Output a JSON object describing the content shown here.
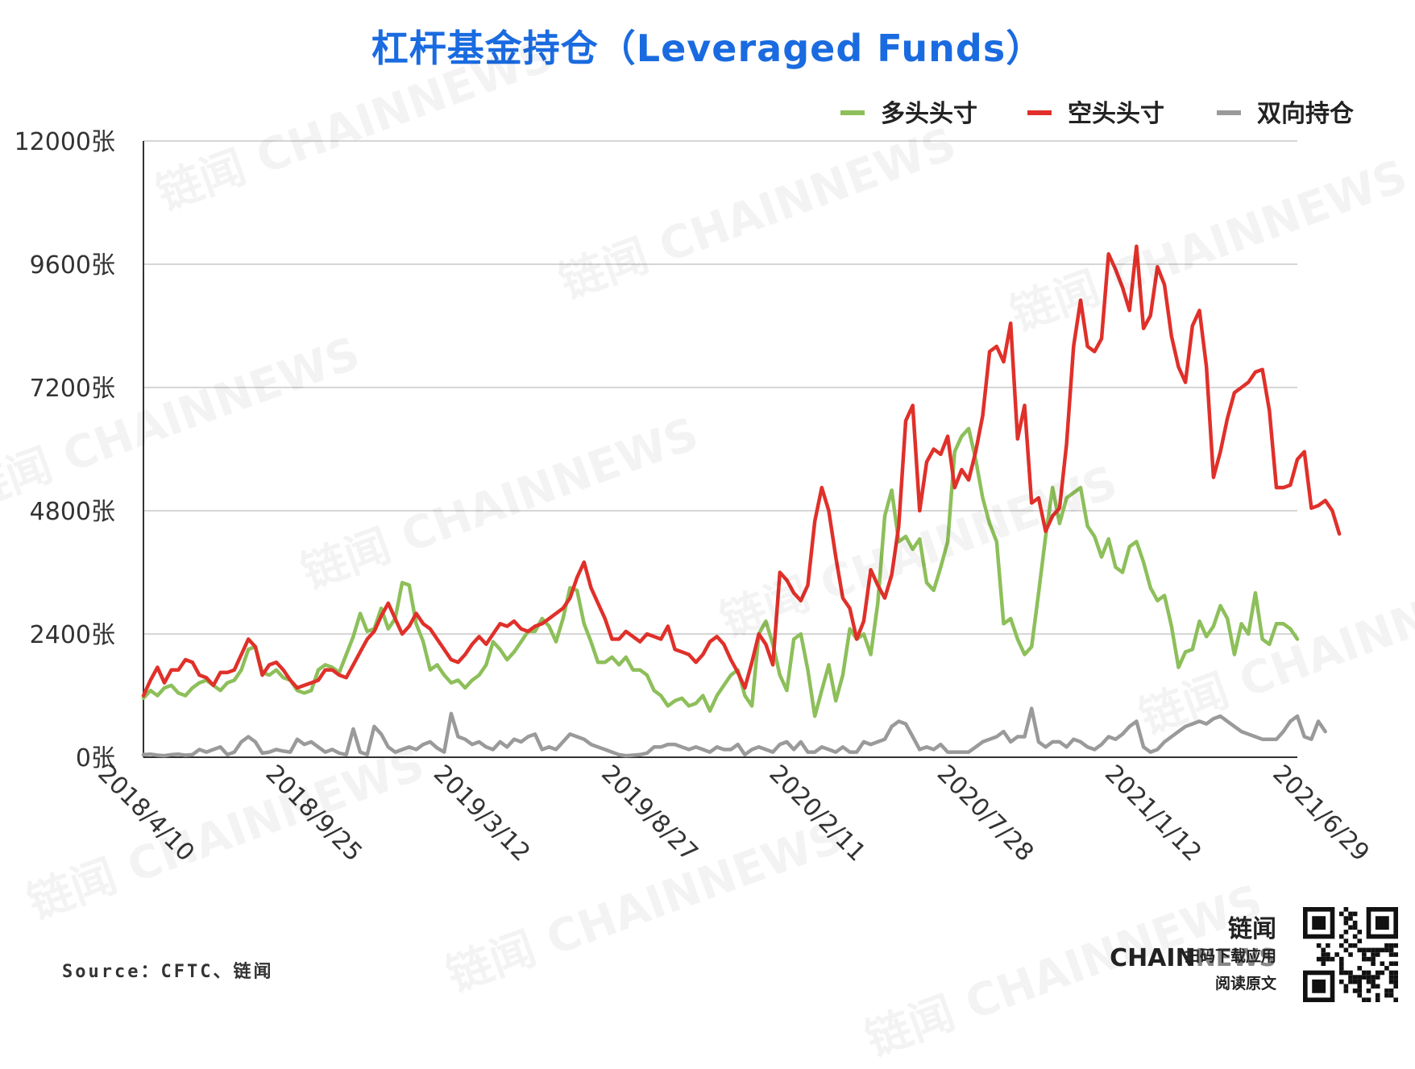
{
  "title": "杠杆基金持仓（Leveraged Funds）",
  "source": "Source：CFTC、链闻",
  "brand": {
    "name_cn": "链闻",
    "name_chain": "CHAIN",
    "name_news": "NEWS",
    "line1": "扫码下载应用",
    "line2": "阅读原文",
    "watermark": "链闻 CHAINNEWS"
  },
  "chart_data": {
    "type": "line",
    "title": "杠杆基金持仓（Leveraged Funds）",
    "xlabel": "",
    "ylabel": "",
    "ylim": [
      0,
      12000
    ],
    "yticks": [
      0,
      2400,
      4800,
      7200,
      9600,
      12000
    ],
    "ytick_suffix": "张",
    "grid": true,
    "legend_position": "top-right",
    "x_tick_labels": [
      "2018/4/10",
      "2018/9/25",
      "2019/3/12",
      "2019/8/27",
      "2020/2/11",
      "2020/7/28",
      "2021/1/12",
      "2021/6/29"
    ],
    "x_tick_index": [
      0,
      24,
      48,
      72,
      96,
      120,
      144,
      168
    ],
    "series": [
      {
        "name": "多头头寸",
        "color": "#8dbf5a",
        "values": [
          1150,
          1300,
          1200,
          1350,
          1400,
          1250,
          1200,
          1350,
          1450,
          1500,
          1400,
          1300,
          1450,
          1500,
          1700,
          2100,
          2150,
          1650,
          1600,
          1700,
          1550,
          1500,
          1300,
          1250,
          1300,
          1700,
          1800,
          1750,
          1650,
          2000,
          2350,
          2800,
          2450,
          2500,
          2900,
          2500,
          2700,
          3400,
          3350,
          2600,
          2250,
          1700,
          1800,
          1600,
          1450,
          1500,
          1350,
          1500,
          1600,
          1800,
          2250,
          2100,
          1900,
          2050,
          2250,
          2450,
          2450,
          2700,
          2550,
          2250,
          2700,
          3300,
          3250,
          2600,
          2250,
          1850,
          1850,
          1950,
          1800,
          1950,
          1700,
          1700,
          1600,
          1300,
          1200,
          1000,
          1100,
          1150,
          1000,
          1050,
          1200,
          900,
          1200,
          1400,
          1600,
          1700,
          1200,
          1000,
          2400,
          2650,
          2200,
          1600,
          1300,
          2300,
          2400,
          1700,
          800,
          1300,
          1800,
          1100,
          1600,
          2500,
          2300,
          2400,
          2000,
          3000,
          4700,
          5200,
          4200,
          4300,
          4050,
          4250,
          3400,
          3250,
          3700,
          4200,
          5950,
          6250,
          6400,
          5800,
          5050,
          4550,
          4200,
          2600,
          2700,
          2300,
          2000,
          2150,
          3200,
          4300,
          5250,
          4550,
          5050,
          5150,
          5250,
          4500,
          4300,
          3900,
          4250,
          3700,
          3600,
          4100,
          4200,
          3800,
          3300,
          3050,
          3150,
          2550,
          1750,
          2050,
          2100,
          2650,
          2350,
          2550,
          2950,
          2700,
          2000,
          2600,
          2400,
          3200,
          2300,
          2200,
          2600,
          2600,
          2500,
          2300
        ]
      },
      {
        "name": "空头头寸",
        "color": "#e0302a",
        "values": [
          1200,
          1500,
          1750,
          1450,
          1700,
          1700,
          1900,
          1850,
          1600,
          1550,
          1400,
          1650,
          1650,
          1700,
          2000,
          2300,
          2150,
          1600,
          1800,
          1850,
          1700,
          1500,
          1350,
          1400,
          1450,
          1500,
          1700,
          1700,
          1600,
          1550,
          1800,
          2050,
          2300,
          2450,
          2750,
          3000,
          2700,
          2400,
          2550,
          2800,
          2600,
          2500,
          2300,
          2100,
          1900,
          1850,
          2000,
          2200,
          2350,
          2200,
          2400,
          2600,
          2550,
          2650,
          2500,
          2450,
          2550,
          2600,
          2700,
          2800,
          2900,
          3100,
          3500,
          3800,
          3300,
          3000,
          2700,
          2300,
          2300,
          2450,
          2350,
          2250,
          2400,
          2350,
          2300,
          2550,
          2100,
          2050,
          2000,
          1850,
          2000,
          2250,
          2350,
          2200,
          1900,
          1650,
          1350,
          1850,
          2400,
          2200,
          1800,
          3600,
          3450,
          3200,
          3050,
          3350,
          4600,
          5250,
          4800,
          3900,
          3100,
          2900,
          2300,
          2650,
          3650,
          3350,
          3100,
          3550,
          4500,
          6550,
          6850,
          4800,
          5750,
          6000,
          5900,
          6250,
          5250,
          5600,
          5400,
          5950,
          6650,
          7900,
          8000,
          7700,
          8450,
          6200,
          6850,
          4950,
          5050,
          4400,
          4700,
          4850,
          6100,
          8000,
          8900,
          8000,
          7900,
          8150,
          9800,
          9500,
          9150,
          8700,
          9950,
          8350,
          8600,
          9550,
          9200,
          8200,
          7600,
          7300,
          8400,
          8700,
          7600,
          5450,
          5950,
          6600,
          7100,
          7200,
          7300,
          7500,
          7550,
          6750,
          5250,
          5250,
          5300,
          5800,
          5950,
          4850,
          4900,
          5000,
          4800,
          4350
        ]
      },
      {
        "name": "双向持仓",
        "color": "#9a9a9a",
        "values": [
          50,
          60,
          40,
          30,
          50,
          60,
          40,
          50,
          150,
          100,
          150,
          200,
          50,
          100,
          300,
          400,
          300,
          80,
          100,
          150,
          120,
          100,
          350,
          250,
          300,
          200,
          100,
          150,
          80,
          50,
          550,
          100,
          50,
          600,
          450,
          200,
          100,
          150,
          200,
          150,
          250,
          300,
          180,
          100,
          850,
          400,
          350,
          250,
          300,
          200,
          150,
          300,
          200,
          350,
          300,
          400,
          450,
          150,
          200,
          150,
          300,
          450,
          400,
          350,
          250,
          200,
          150,
          100,
          50,
          30,
          40,
          50,
          80,
          200,
          200,
          250,
          250,
          200,
          150,
          200,
          150,
          100,
          200,
          150,
          150,
          250,
          50,
          150,
          200,
          150,
          100,
          250,
          300,
          150,
          300,
          100,
          100,
          200,
          150,
          100,
          200,
          100,
          100,
          300,
          250,
          300,
          350,
          600,
          700,
          650,
          400,
          150,
          200,
          150,
          250,
          100,
          100,
          100,
          100,
          200,
          300,
          350,
          400,
          500,
          300,
          400,
          400,
          950,
          300,
          200,
          300,
          300,
          200,
          350,
          300,
          200,
          150,
          250,
          400,
          350,
          450,
          600,
          700,
          200,
          100,
          150,
          300,
          400,
          500,
          600,
          650,
          700,
          650,
          750,
          800,
          700,
          600,
          500,
          450,
          400,
          350,
          350,
          350,
          500,
          700,
          800,
          400,
          350,
          700,
          500
        ]
      }
    ]
  }
}
